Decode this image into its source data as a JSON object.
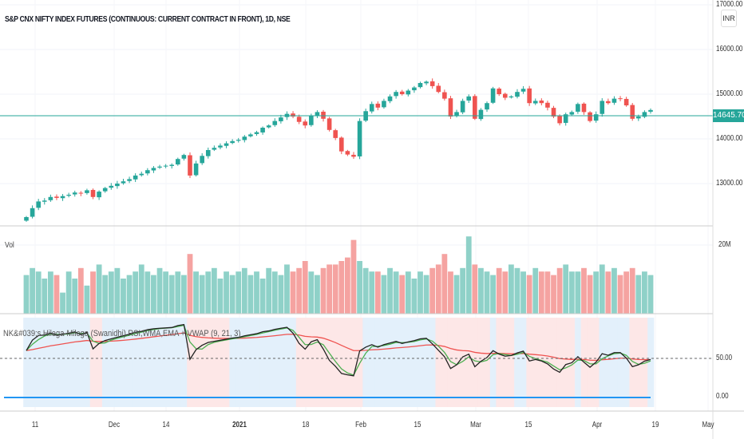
{
  "header": {
    "symbol_title": "S&P CNX NIFTY INDEX FUTURES (CONTINUOUS: CURRENT CONTRACT IN FRONT), 1D, NSE",
    "currency": "INR"
  },
  "price_axis": {
    "labels": [
      "17000.00",
      "16000.00",
      "15000.00",
      "14000.00",
      "13000.00"
    ],
    "last_price": "14645.70"
  },
  "volume_pane": {
    "label": "Vol",
    "axis_label": "20M"
  },
  "indicator_pane": {
    "label": "NK&#039;s Hilega-Milega (Swanidhi) RSI,WMA,EMA + VWAP (9, 21, 3)",
    "axis_labels": [
      "50.00",
      "0.00"
    ]
  },
  "time_axis": {
    "labels": [
      "11",
      "Dec",
      "14",
      "2021",
      "18",
      "Feb",
      "15",
      "Mar",
      "15",
      "Apr",
      "19",
      "May"
    ]
  },
  "colors": {
    "up": "#26a69a",
    "down": "#ef5350",
    "up_vol": "#8fd1c8",
    "down_vol": "#f5a3a1",
    "rsi": "#222222",
    "wma": "#4caf50",
    "ema": "#ef5350",
    "vwap_line": "#2196f3",
    "bull_bg": "#e3f0fb",
    "bear_bg": "#fde7e7"
  },
  "chart_data": {
    "type": "candlestick",
    "title": "S&P CNX NIFTY INDEX FUTURES (CONTINUOUS: CURRENT CONTRACT IN FRONT), 1D, NSE",
    "ylim": [
      12500,
      17000
    ],
    "closes": [
      12250,
      12450,
      12600,
      12620,
      12700,
      12680,
      12720,
      12750,
      12800,
      12780,
      12850,
      12700,
      12820,
      12900,
      12950,
      13000,
      13050,
      13100,
      13180,
      13220,
      13300,
      13350,
      13380,
      13400,
      13420,
      13550,
      13640,
      13180,
      13450,
      13620,
      13750,
      13800,
      13850,
      13900,
      13950,
      13980,
      14050,
      14100,
      14150,
      14250,
      14300,
      14400,
      14480,
      14560,
      14500,
      14380,
      14300,
      14520,
      14600,
      14450,
      14200,
      14020,
      13720,
      13650,
      13600,
      14400,
      14620,
      14780,
      14700,
      14850,
      14950,
      15050,
      15000,
      15080,
      15150,
      15250,
      15280,
      15180,
      15050,
      14900,
      14500,
      14600,
      14850,
      14950,
      14450,
      14650,
      14800,
      15130,
      15000,
      14920,
      14950,
      15050,
      15120,
      14800,
      14850,
      14800,
      14700,
      14500,
      14350,
      14550,
      14600,
      14780,
      14600,
      14400,
      14550,
      14850,
      14800,
      14900,
      14900,
      14750,
      14450,
      14500,
      14600,
      14645.7
    ],
    "volumes_m": [
      11,
      13,
      12,
      10,
      12,
      11,
      6,
      12,
      10,
      13,
      8,
      12,
      14,
      11,
      12,
      13,
      10,
      11,
      12,
      14,
      12,
      11,
      13,
      12,
      11,
      12,
      11,
      17,
      12,
      11,
      12,
      13,
      10,
      12,
      11,
      12,
      13,
      11,
      12,
      10,
      13,
      12,
      11,
      14,
      12,
      13,
      15,
      12,
      11,
      13,
      14,
      14,
      15,
      16,
      21,
      15,
      13,
      12,
      12,
      11,
      13,
      12,
      11,
      12,
      10,
      12,
      11,
      13,
      14,
      17,
      12,
      11,
      13,
      22,
      14,
      13,
      12,
      11,
      13,
      12,
      14,
      13,
      12,
      11,
      13,
      12,
      12,
      11,
      13,
      14,
      12,
      12,
      13,
      11,
      12,
      14,
      12,
      13,
      11,
      12,
      13,
      11,
      12,
      11
    ]
  }
}
